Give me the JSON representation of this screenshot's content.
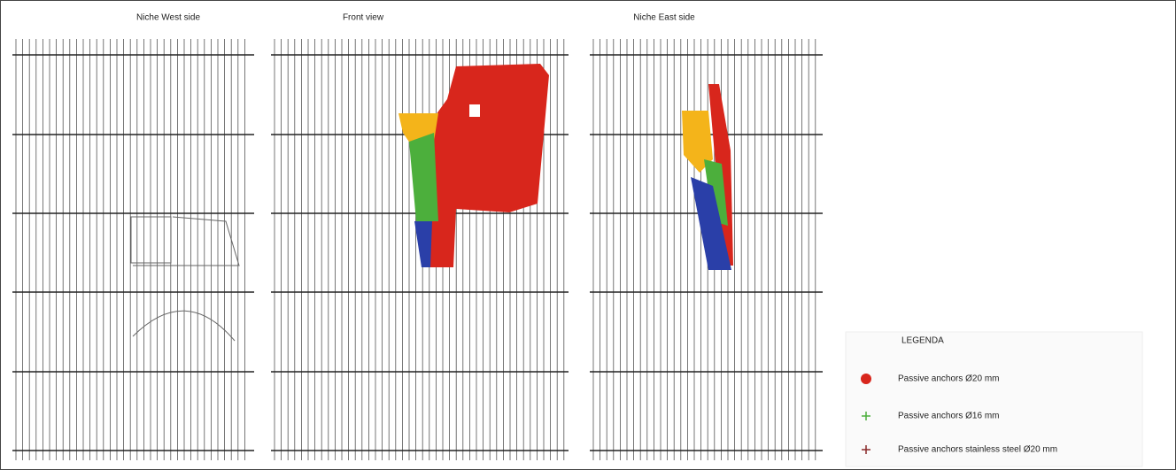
{
  "panels": [
    {
      "title": "Niche West side"
    },
    {
      "title": "Front view"
    },
    {
      "title": "Niche East side"
    }
  ],
  "legend": {
    "title": "LEGENDA",
    "items": [
      {
        "label": "Passive anchors Ø20 mm"
      },
      {
        "label": "Passive anchors Ø16 mm"
      },
      {
        "label": "Passive anchors stainless steel Ø20 mm"
      }
    ]
  }
}
